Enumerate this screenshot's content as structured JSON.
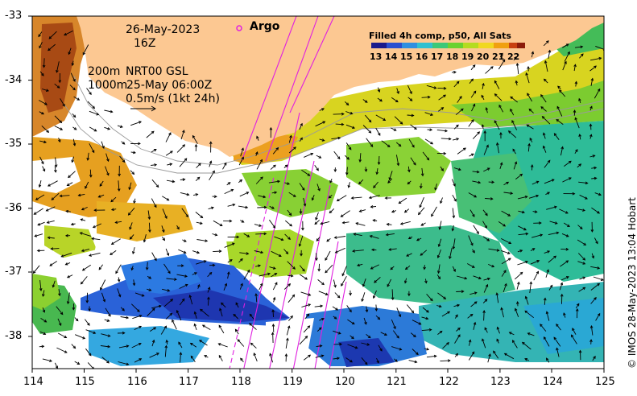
{
  "map": {
    "lon_ticks": [
      "114",
      "115",
      "116",
      "117",
      "118",
      "119",
      "120",
      "121",
      "122",
      "123",
      "124",
      "125"
    ],
    "lat_ticks": [
      "-33",
      "-34",
      "-35",
      "-36",
      "-37",
      "-38"
    ],
    "lon_range": [
      114,
      125
    ],
    "lat_range": [
      -38.5,
      -33
    ],
    "land_color": "#fcc892",
    "ocean_color": "#ffffff"
  },
  "annotations": {
    "date": "26-May-2023",
    "hour": "16Z",
    "depth_200": "200m",
    "depth_1000": "1000m",
    "product": "NRT00 GSL",
    "product_time": "25-May 06:00Z",
    "vector_scale": "0.5m/s (1kt 24h)",
    "argo_label": "Argo",
    "credit": "© IMOS 28-May-2023 13:04 Hobart"
  },
  "colorbar": {
    "title": "Filled 4h comp, p50, All Sats",
    "labels": [
      "13",
      "14",
      "15",
      "16",
      "17",
      "18",
      "19",
      "20",
      "21",
      "22"
    ],
    "colors": [
      "#1a1a8c",
      "#2a4fd0",
      "#2f8fe0",
      "#30c0d0",
      "#3cc878",
      "#6ad230",
      "#b4dc20",
      "#f0d820",
      "#f0a010",
      "#c84010",
      "#8c1c0a"
    ]
  }
}
